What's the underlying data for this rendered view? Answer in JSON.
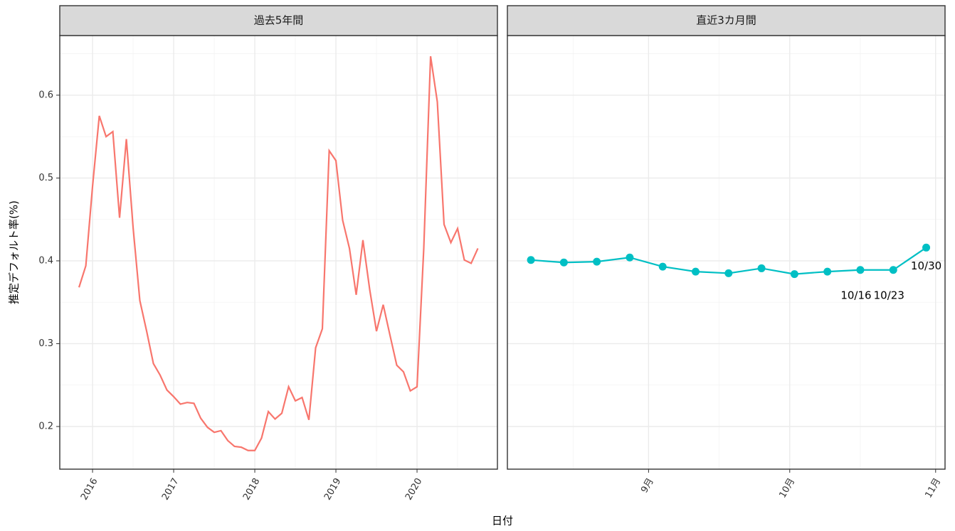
{
  "xlabel": "日付",
  "ylabel": "推定デフォルト率(%)",
  "chart_data": [
    {
      "type": "line",
      "title": "過去5年間",
      "x": [
        2015.833,
        2015.917,
        2016.0,
        2016.083,
        2016.167,
        2016.25,
        2016.333,
        2016.417,
        2016.5,
        2016.583,
        2016.667,
        2016.75,
        2016.833,
        2016.917,
        2017.0,
        2017.083,
        2017.167,
        2017.25,
        2017.333,
        2017.417,
        2017.5,
        2017.583,
        2017.667,
        2017.75,
        2017.833,
        2017.917,
        2018.0,
        2018.083,
        2018.167,
        2018.25,
        2018.333,
        2018.417,
        2018.5,
        2018.583,
        2018.667,
        2018.75,
        2018.833,
        2018.917,
        2019.0,
        2019.083,
        2019.167,
        2019.25,
        2019.333,
        2019.417,
        2019.5,
        2019.583,
        2019.667,
        2019.75,
        2019.833,
        2019.917,
        2020.0,
        2020.083,
        2020.167,
        2020.25,
        2020.333,
        2020.417,
        2020.5,
        2020.583,
        2020.667,
        2020.75
      ],
      "series": [
        {
          "color": "#F8766D",
          "values": [
            0.368,
            0.394,
            0.49,
            0.575,
            0.55,
            0.556,
            0.452,
            0.547,
            0.44,
            0.352,
            0.315,
            0.276,
            0.262,
            0.244,
            0.236,
            0.227,
            0.229,
            0.228,
            0.21,
            0.199,
            0.193,
            0.195,
            0.183,
            0.176,
            0.175,
            0.171,
            0.171,
            0.186,
            0.218,
            0.209,
            0.216,
            0.248,
            0.231,
            0.235,
            0.208,
            0.295,
            0.318,
            0.533,
            0.521,
            0.449,
            0.415,
            0.359,
            0.425,
            0.365,
            0.315,
            0.347,
            0.31,
            0.274,
            0.266,
            0.243,
            0.248,
            0.415,
            0.647,
            0.592,
            0.444,
            0.422,
            0.439,
            0.401,
            0.397,
            0.415
          ]
        }
      ],
      "xlim": [
        2015.596,
        2020.991
      ],
      "xticks": [
        2016,
        2017,
        2018,
        2019,
        2020
      ],
      "xticks_minor": [
        2016.5,
        2017.5,
        2018.5,
        2019.5,
        2020.5
      ],
      "ylim": [
        0.1485,
        0.672
      ],
      "yticks": [
        0.2,
        0.3,
        0.4,
        0.5,
        0.6
      ],
      "yticks_minor": [
        0.25,
        0.35,
        0.45,
        0.55,
        0.65
      ],
      "grid": true
    },
    {
      "type": "line",
      "title": "直近3カ月間",
      "markers": true,
      "x": [
        "8/7",
        "8/14",
        "8/21",
        "8/28",
        "9/4",
        "9/11",
        "9/18",
        "9/25",
        "10/2",
        "10/9",
        "10/16",
        "10/23",
        "10/30"
      ],
      "series": [
        {
          "color": "#00BFC4",
          "values": [
            0.401,
            0.398,
            0.399,
            0.404,
            0.393,
            0.387,
            0.385,
            0.391,
            0.384,
            0.387,
            0.389,
            0.389,
            0.416
          ]
        }
      ],
      "labeled_points": [
        10,
        11,
        12
      ],
      "xlim": [
        "8/2",
        "11/3"
      ],
      "xticks": [
        {
          "value": "9/1",
          "label": "9月"
        },
        {
          "value": "10/1",
          "label": "10月"
        },
        {
          "value": "11/1",
          "label": "11月"
        }
      ],
      "xticks_minor": [
        "8/16",
        "9/16",
        "10/16"
      ],
      "ylim": [
        0.1485,
        0.672
      ],
      "yticks_minor": [
        0.25,
        0.35,
        0.45,
        0.55,
        0.65
      ],
      "ygrid_from": [
        0.2,
        0.3,
        0.4,
        0.5,
        0.6
      ],
      "grid": true
    }
  ]
}
